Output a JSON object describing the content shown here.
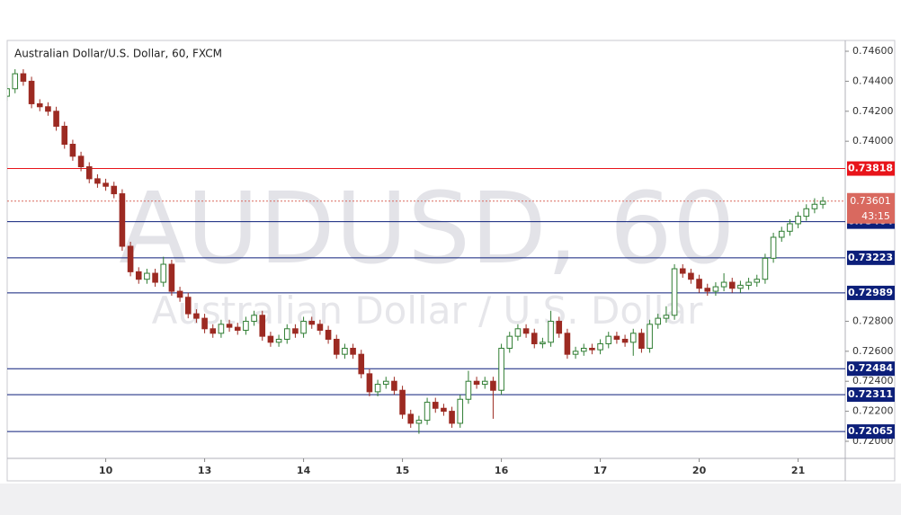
{
  "chart_data": {
    "type": "candlestick",
    "title": "Australian Dollar/U.S. Dollar, 60, FXCM",
    "watermark": "AUDUSD, 60",
    "watermark_subtitle": "Australian Dollar / U.S. Dollar",
    "categories": [
      null,
      null,
      null,
      null,
      null,
      null,
      null,
      null,
      null,
      null,
      null,
      null,
      "10",
      null,
      null,
      null,
      null,
      null,
      null,
      null,
      null,
      null,
      null,
      null,
      "13",
      null,
      null,
      null,
      null,
      null,
      null,
      null,
      null,
      null,
      null,
      null,
      "14",
      null,
      null,
      null,
      null,
      null,
      null,
      null,
      null,
      null,
      null,
      null,
      "15",
      null,
      null,
      null,
      null,
      null,
      null,
      null,
      null,
      null,
      null,
      null,
      "16",
      null,
      null,
      null,
      null,
      null,
      null,
      null,
      null,
      null,
      null,
      null,
      "17",
      null,
      null,
      null,
      null,
      null,
      null,
      null,
      null,
      null,
      null,
      null,
      "20",
      null,
      null,
      null,
      null,
      null,
      null,
      null,
      null,
      null,
      null,
      null,
      "21",
      null,
      null,
      null
    ],
    "open": [
      0.743,
      0.7435,
      0.7445,
      0.744,
      0.7425,
      0.7423,
      0.742,
      0.741,
      0.7398,
      0.739,
      0.7383,
      0.7375,
      0.7372,
      0.737,
      0.7365,
      0.733,
      0.7313,
      0.7308,
      0.7312,
      0.7306,
      0.7318,
      0.73,
      0.7296,
      0.7285,
      0.7282,
      0.7275,
      0.7272,
      0.7278,
      0.7276,
      0.7274,
      0.728,
      0.7284,
      0.727,
      0.7266,
      0.7268,
      0.7275,
      0.7272,
      0.728,
      0.7278,
      0.7274,
      0.7268,
      0.7258,
      0.7262,
      0.7258,
      0.7245,
      0.7233,
      0.7238,
      0.724,
      0.7234,
      0.7218,
      0.7212,
      0.7214,
      0.7226,
      0.7222,
      0.722,
      0.7212,
      0.7228,
      0.724,
      0.7238,
      0.724,
      0.7234,
      0.7262,
      0.727,
      0.7275,
      0.7272,
      0.7265,
      0.7266,
      0.728,
      0.7272,
      0.7258,
      0.726,
      0.7262,
      0.7261,
      0.7265,
      0.727,
      0.7268,
      0.7266,
      0.7272,
      0.7262,
      0.7278,
      0.7282,
      0.7284,
      0.7315,
      0.7312,
      0.7308,
      0.7302,
      0.73,
      0.7303,
      0.7306,
      0.7302,
      0.7304,
      0.7306,
      0.7308,
      0.7322,
      0.7336,
      0.734,
      0.7345,
      0.735,
      0.7355,
      0.7358
    ],
    "high": [
      0.7438,
      0.7448,
      0.7448,
      0.7443,
      0.7428,
      0.7426,
      0.7423,
      0.7413,
      0.7401,
      0.7393,
      0.7386,
      0.7378,
      0.7375,
      0.7373,
      0.7368,
      0.7333,
      0.7316,
      0.7315,
      0.7315,
      0.7323,
      0.7321,
      0.7303,
      0.7299,
      0.7288,
      0.7285,
      0.7278,
      0.7281,
      0.7281,
      0.7279,
      0.7283,
      0.7287,
      0.7287,
      0.7273,
      0.7271,
      0.7278,
      0.7278,
      0.7283,
      0.7283,
      0.7281,
      0.7277,
      0.7271,
      0.7265,
      0.7265,
      0.7261,
      0.7248,
      0.7241,
      0.7243,
      0.7243,
      0.7237,
      0.7221,
      0.7217,
      0.7229,
      0.7229,
      0.7225,
      0.7223,
      0.7231,
      0.7247,
      0.7243,
      0.7243,
      0.7243,
      0.7265,
      0.7273,
      0.7278,
      0.7278,
      0.7275,
      0.7269,
      0.7287,
      0.7283,
      0.7275,
      0.7263,
      0.7265,
      0.7265,
      0.7268,
      0.7273,
      0.7273,
      0.7271,
      0.7275,
      0.7275,
      0.7281,
      0.7285,
      0.729,
      0.7318,
      0.7318,
      0.7315,
      0.7311,
      0.7305,
      0.7306,
      0.7312,
      0.7309,
      0.7307,
      0.7309,
      0.7311,
      0.7325,
      0.7339,
      0.7343,
      0.7348,
      0.7353,
      0.7358,
      0.7362,
      0.7363
    ],
    "low": [
      0.7427,
      0.7432,
      0.7437,
      0.7422,
      0.742,
      0.7417,
      0.7407,
      0.7395,
      0.7387,
      0.738,
      0.7372,
      0.7369,
      0.7367,
      0.7362,
      0.7327,
      0.731,
      0.7305,
      0.7305,
      0.7303,
      0.7303,
      0.7297,
      0.7293,
      0.7282,
      0.7279,
      0.7272,
      0.7269,
      0.7269,
      0.7273,
      0.7271,
      0.7271,
      0.7277,
      0.7267,
      0.7263,
      0.7263,
      0.7265,
      0.7269,
      0.7269,
      0.7275,
      0.7271,
      0.7265,
      0.7255,
      0.7255,
      0.7255,
      0.7242,
      0.723,
      0.723,
      0.7235,
      0.7231,
      0.7215,
      0.7209,
      0.7205,
      0.7211,
      0.7219,
      0.7217,
      0.7209,
      0.7209,
      0.7225,
      0.7235,
      0.7235,
      0.7215,
      0.7231,
      0.7259,
      0.7267,
      0.7269,
      0.7262,
      0.7262,
      0.7263,
      0.7269,
      0.7255,
      0.7255,
      0.7257,
      0.7258,
      0.7258,
      0.7262,
      0.7265,
      0.7263,
      0.7257,
      0.7259,
      0.7259,
      0.7275,
      0.7279,
      0.7281,
      0.7309,
      0.7305,
      0.7299,
      0.7297,
      0.7297,
      0.73,
      0.7299,
      0.7299,
      0.7301,
      0.7303,
      0.7305,
      0.7319,
      0.7333,
      0.7337,
      0.7342,
      0.7347,
      0.7352,
      0.7355
    ],
    "close": [
      0.7435,
      0.7445,
      0.744,
      0.7425,
      0.7423,
      0.742,
      0.741,
      0.7398,
      0.739,
      0.7383,
      0.7375,
      0.7372,
      0.737,
      0.7365,
      0.733,
      0.7313,
      0.7308,
      0.7312,
      0.7306,
      0.7318,
      0.73,
      0.7296,
      0.7285,
      0.7282,
      0.7275,
      0.7272,
      0.7278,
      0.7276,
      0.7274,
      0.728,
      0.7284,
      0.727,
      0.7266,
      0.7268,
      0.7275,
      0.7272,
      0.728,
      0.7278,
      0.7274,
      0.7268,
      0.7258,
      0.7262,
      0.7258,
      0.7245,
      0.7233,
      0.7238,
      0.724,
      0.7234,
      0.7218,
      0.7212,
      0.7214,
      0.7226,
      0.7222,
      0.722,
      0.7212,
      0.7228,
      0.724,
      0.7238,
      0.724,
      0.7234,
      0.7262,
      0.727,
      0.7275,
      0.7272,
      0.7265,
      0.7266,
      0.728,
      0.7272,
      0.7258,
      0.726,
      0.7262,
      0.7261,
      0.7265,
      0.727,
      0.7268,
      0.7266,
      0.7272,
      0.7262,
      0.7278,
      0.7282,
      0.7284,
      0.7315,
      0.7312,
      0.7308,
      0.7302,
      0.73,
      0.7303,
      0.7306,
      0.7302,
      0.7304,
      0.7306,
      0.7308,
      0.7322,
      0.7336,
      0.734,
      0.7345,
      0.735,
      0.7355,
      0.7358,
      0.736
    ],
    "up_color": "#2f7d32",
    "down_color": "#9c2a22",
    "ylim": [
      0.71886,
      0.74672
    ],
    "yticks": [
      {
        "value": 0.746,
        "label": "0.74600"
      },
      {
        "value": 0.744,
        "label": "0.74400"
      },
      {
        "value": 0.742,
        "label": "0.74200"
      },
      {
        "value": 0.74,
        "label": "0.74000"
      },
      {
        "value": 0.728,
        "label": "0.72800"
      },
      {
        "value": 0.726,
        "label": "0.72600"
      },
      {
        "value": 0.724,
        "label": "0.72400"
      },
      {
        "value": 0.722,
        "label": "0.72200"
      },
      {
        "value": 0.72,
        "label": "0.72000"
      }
    ],
    "levels": [
      {
        "value": 0.73818,
        "color": "#e8141a"
      },
      {
        "value": 0.73464,
        "color": "#0c1f7a"
      },
      {
        "value": 0.73223,
        "color": "#0c1f7a"
      },
      {
        "value": 0.72989,
        "color": "#0c1f7a"
      },
      {
        "value": 0.72484,
        "color": "#0c1f7a"
      },
      {
        "value": 0.72311,
        "color": "#0c1f7a"
      },
      {
        "value": 0.72065,
        "color": "#0c1f7a"
      }
    ],
    "last_price": 0.73601,
    "last_price_color": "#d9695f",
    "countdown": "43:15"
  }
}
